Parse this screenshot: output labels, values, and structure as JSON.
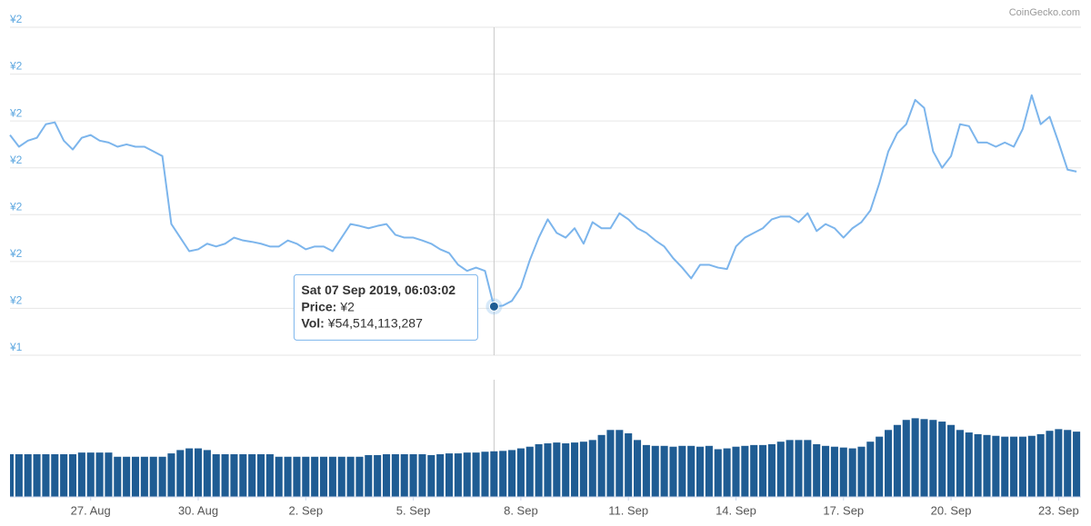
{
  "chart_data": {
    "type": "line",
    "credit": "CoinGecko.com",
    "grid": true,
    "xlim": [
      "2019-08-24T18:00",
      "2019-09-23T15:00"
    ],
    "xticks": [
      {
        "value": "2019-08-27T00:00",
        "label": "27. Aug"
      },
      {
        "value": "2019-08-30T00:00",
        "label": "30. Aug"
      },
      {
        "value": "2019-09-02T00:00",
        "label": "2. Sep"
      },
      {
        "value": "2019-09-05T00:00",
        "label": "5. Sep"
      },
      {
        "value": "2019-09-08T00:00",
        "label": "8. Sep"
      },
      {
        "value": "2019-09-11T00:00",
        "label": "11. Sep"
      },
      {
        "value": "2019-09-14T00:00",
        "label": "14. Sep"
      },
      {
        "value": "2019-09-17T00:00",
        "label": "17. Sep"
      },
      {
        "value": "2019-09-20T00:00",
        "label": "20. Sep"
      },
      {
        "value": "2019-09-23T00:00",
        "label": "23. Sep"
      }
    ],
    "ylim": [
      1.4,
      2.1
    ],
    "yticks": [
      {
        "value": 2.1,
        "label": "¥2"
      },
      {
        "value": 2.0,
        "label": "¥2"
      },
      {
        "value": 1.9,
        "label": "¥2"
      },
      {
        "value": 1.8,
        "label": "¥2"
      },
      {
        "value": 1.7,
        "label": "¥2"
      },
      {
        "value": 1.6,
        "label": "¥2"
      },
      {
        "value": 1.5,
        "label": "¥2"
      },
      {
        "value": 1.4,
        "label": "¥1"
      }
    ],
    "y2lim": [
      0,
      140000000000
    ],
    "x": [
      "2019-08-24T18:00",
      "2019-08-25T00:00",
      "2019-08-25T06:00",
      "2019-08-25T12:00",
      "2019-08-25T18:00",
      "2019-08-26T00:00",
      "2019-08-26T06:00",
      "2019-08-26T12:00",
      "2019-08-26T18:00",
      "2019-08-27T00:00",
      "2019-08-27T06:00",
      "2019-08-27T12:00",
      "2019-08-27T18:00",
      "2019-08-28T00:00",
      "2019-08-28T06:00",
      "2019-08-28T12:00",
      "2019-08-28T18:00",
      "2019-08-29T00:00",
      "2019-08-29T06:00",
      "2019-08-29T12:00",
      "2019-08-29T18:00",
      "2019-08-30T00:00",
      "2019-08-30T06:00",
      "2019-08-30T12:00",
      "2019-08-30T18:00",
      "2019-08-31T00:00",
      "2019-08-31T06:00",
      "2019-08-31T12:00",
      "2019-08-31T18:00",
      "2019-09-01T00:00",
      "2019-09-01T06:00",
      "2019-09-01T12:00",
      "2019-09-01T18:00",
      "2019-09-02T00:00",
      "2019-09-02T06:00",
      "2019-09-02T12:00",
      "2019-09-02T18:00",
      "2019-09-03T00:00",
      "2019-09-03T06:00",
      "2019-09-03T12:00",
      "2019-09-03T18:00",
      "2019-09-04T00:00",
      "2019-09-04T06:00",
      "2019-09-04T12:00",
      "2019-09-04T18:00",
      "2019-09-05T00:00",
      "2019-09-05T06:00",
      "2019-09-05T12:00",
      "2019-09-05T18:00",
      "2019-09-06T00:00",
      "2019-09-06T06:00",
      "2019-09-06T12:00",
      "2019-09-06T18:00",
      "2019-09-07T00:00",
      "2019-09-07T06:00",
      "2019-09-07T12:00",
      "2019-09-07T18:00",
      "2019-09-08T00:00",
      "2019-09-08T06:00",
      "2019-09-08T12:00",
      "2019-09-08T18:00",
      "2019-09-09T00:00",
      "2019-09-09T06:00",
      "2019-09-09T12:00",
      "2019-09-09T18:00",
      "2019-09-10T00:00",
      "2019-09-10T06:00",
      "2019-09-10T12:00",
      "2019-09-10T18:00",
      "2019-09-11T00:00",
      "2019-09-11T06:00",
      "2019-09-11T12:00",
      "2019-09-11T18:00",
      "2019-09-12T00:00",
      "2019-09-12T06:00",
      "2019-09-12T12:00",
      "2019-09-12T18:00",
      "2019-09-13T00:00",
      "2019-09-13T06:00",
      "2019-09-13T12:00",
      "2019-09-13T18:00",
      "2019-09-14T00:00",
      "2019-09-14T06:00",
      "2019-09-14T12:00",
      "2019-09-14T18:00",
      "2019-09-15T00:00",
      "2019-09-15T06:00",
      "2019-09-15T12:00",
      "2019-09-15T18:00",
      "2019-09-16T00:00",
      "2019-09-16T06:00",
      "2019-09-16T12:00",
      "2019-09-16T18:00",
      "2019-09-17T00:00",
      "2019-09-17T06:00",
      "2019-09-17T12:00",
      "2019-09-17T18:00",
      "2019-09-18T00:00",
      "2019-09-18T06:00",
      "2019-09-18T12:00",
      "2019-09-18T18:00",
      "2019-09-19T00:00",
      "2019-09-19T06:00",
      "2019-09-19T12:00",
      "2019-09-19T18:00",
      "2019-09-20T00:00",
      "2019-09-20T06:00",
      "2019-09-20T12:00",
      "2019-09-20T18:00",
      "2019-09-21T00:00",
      "2019-09-21T06:00",
      "2019-09-21T12:00",
      "2019-09-21T18:00",
      "2019-09-22T00:00",
      "2019-09-22T06:00",
      "2019-09-22T12:00",
      "2019-09-22T18:00",
      "2019-09-23T00:00",
      "2019-09-23T06:00",
      "2019-09-23T12:00"
    ],
    "series": [
      {
        "type": "line",
        "color": "#7cb5ec",
        "values": [
          1.87,
          1.845,
          1.858,
          1.864,
          1.893,
          1.897,
          1.858,
          1.839,
          1.864,
          1.87,
          1.858,
          1.854,
          1.845,
          1.85,
          1.845,
          1.845,
          1.835,
          1.825,
          1.68,
          1.651,
          1.622,
          1.626,
          1.638,
          1.632,
          1.638,
          1.651,
          1.645,
          1.642,
          1.638,
          1.632,
          1.632,
          1.645,
          1.638,
          1.626,
          1.632,
          1.632,
          1.622,
          1.651,
          1.68,
          1.676,
          1.671,
          1.676,
          1.68,
          1.657,
          1.651,
          1.651,
          1.645,
          1.638,
          1.626,
          1.618,
          1.593,
          1.58,
          1.587,
          1.58,
          1.504,
          1.506,
          1.516,
          1.545,
          1.603,
          1.651,
          1.69,
          1.661,
          1.651,
          1.671,
          1.638,
          1.684,
          1.671,
          1.671,
          1.703,
          1.69,
          1.671,
          1.661,
          1.645,
          1.632,
          1.607,
          1.587,
          1.564,
          1.593,
          1.593,
          1.587,
          1.584,
          1.632,
          1.651,
          1.661,
          1.671,
          1.69,
          1.696,
          1.696,
          1.684,
          1.703,
          1.665,
          1.68,
          1.671,
          1.651,
          1.671,
          1.684,
          1.709,
          1.767,
          1.835,
          1.874,
          1.893,
          1.945,
          1.928,
          1.835,
          1.8,
          1.825,
          1.893,
          1.889,
          1.854,
          1.854,
          1.845,
          1.854,
          1.845,
          1.883,
          1.955,
          1.893,
          1.909,
          1.854,
          1.796,
          1.792
        ]
      },
      {
        "type": "bar",
        "axis": "y2",
        "color": "#1f5c93",
        "values": [
          51000000000.0,
          51000000000.0,
          51000000000.0,
          51000000000.0,
          51000000000.0,
          51000000000.0,
          51000000000.0,
          51000000000.0,
          53000000000.0,
          53000000000.0,
          53000000000.0,
          53000000000.0,
          48000000000.0,
          48000000000.0,
          48000000000.0,
          48000000000.0,
          48000000000.0,
          48000000000.0,
          52000000000.0,
          56000000000.0,
          58000000000.0,
          58000000000.0,
          56000000000.0,
          51000000000.0,
          51000000000.0,
          51000000000.0,
          51000000000.0,
          51000000000.0,
          51000000000.0,
          51000000000.0,
          48000000000.0,
          48000000000.0,
          48000000000.0,
          48000000000.0,
          48000000000.0,
          48000000000.0,
          48000000000.0,
          48000000000.0,
          48000000000.0,
          48000000000.0,
          50000000000.0,
          50000000000.0,
          51000000000.0,
          51000000000.0,
          51000000000.0,
          51000000000.0,
          51000000000.0,
          50000000000.0,
          51000000000.0,
          52000000000.0,
          52000000000.0,
          53000000000.0,
          53000000000.0,
          54000000000.0,
          54514113287,
          55000000000.0,
          56000000000.0,
          58000000000.0,
          60000000000.0,
          63000000000.0,
          64000000000.0,
          65000000000.0,
          64000000000.0,
          65000000000.0,
          66000000000.0,
          68000000000.0,
          74000000000.0,
          80000000000.0,
          80000000000.0,
          76000000000.0,
          68000000000.0,
          62000000000.0,
          61000000000.0,
          61000000000.0,
          60000000000.0,
          61000000000.0,
          61000000000.0,
          60000000000.0,
          61000000000.0,
          57000000000.0,
          58000000000.0,
          60000000000.0,
          61000000000.0,
          62000000000.0,
          62000000000.0,
          63000000000.0,
          66000000000.0,
          68000000000.0,
          68000000000.0,
          68000000000.0,
          63000000000.0,
          61000000000.0,
          60000000000.0,
          59000000000.0,
          58000000000.0,
          60000000000.0,
          66000000000.0,
          72000000000.0,
          80000000000.0,
          86000000000.0,
          92000000000.0,
          94000000000.0,
          93000000000.0,
          92000000000.0,
          90000000000.0,
          86000000000.0,
          80000000000.0,
          77000000000.0,
          75000000000.0,
          74000000000.0,
          73000000000.0,
          72000000000.0,
          72000000000.0,
          72000000000.0,
          73000000000.0,
          75000000000.0,
          79000000000.0,
          81000000000.0,
          80000000000.0,
          78000000000.0
        ]
      }
    ],
    "tooltip": {
      "x": "2019-09-07T06:03:02",
      "header": "Sat 07 Sep 2019, 06:03:02",
      "price_label": "Price:",
      "price": 1.504,
      "price_value_label": "¥2",
      "volume_label": "Vol:",
      "volume": 54514113287,
      "volume_value_label": "¥54,514,113,287"
    }
  }
}
